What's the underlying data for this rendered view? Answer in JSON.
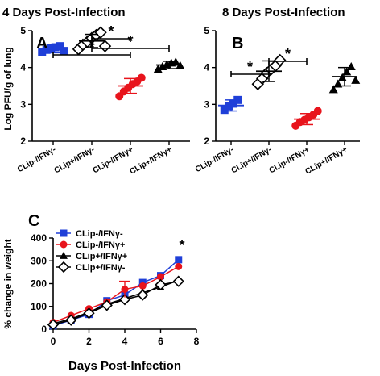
{
  "chart_data": [
    {
      "panel": "A",
      "type": "scatter",
      "title": "4 Days Post-Infection",
      "ylabel": "Log PFU/g of lung",
      "ylim": [
        2,
        5
      ],
      "yticks": [
        "2",
        "3",
        "4",
        "5"
      ],
      "categories": [
        "CLip-/IFNγ-",
        "CLip+/IFNγ-",
        "CLip-/IFNγ+",
        "CLip+/IFNγ+"
      ],
      "series": [
        {
          "category": "CLip-/IFNγ-",
          "marker": "square",
          "color": "#1f3fd8",
          "mean": 4.5,
          "sd": 0.1,
          "points": [
            4.42,
            4.48,
            4.52,
            4.55,
            4.58,
            4.45
          ]
        },
        {
          "category": "CLip+/IFNγ-",
          "marker": "diamond-open",
          "color": "#000000",
          "mean": 4.72,
          "sd": 0.18,
          "points": [
            4.5,
            4.62,
            4.7,
            4.8,
            4.88,
            4.95,
            4.58
          ]
        },
        {
          "category": "CLip-/IFNγ+",
          "marker": "circle",
          "color": "#e8141c",
          "mean": 3.5,
          "sd": 0.2,
          "points": [
            3.22,
            3.35,
            3.45,
            3.55,
            3.62,
            3.72
          ]
        },
        {
          "category": "CLip+/IFNγ+",
          "marker": "triangle",
          "color": "#000000",
          "mean": 4.07,
          "sd": 0.1,
          "points": [
            3.95,
            4.02,
            4.08,
            4.12,
            4.15,
            4.05
          ]
        }
      ],
      "significance": [
        "*",
        "*",
        "*"
      ]
    },
    {
      "panel": "B",
      "type": "scatter",
      "title": "8 Days Post-Infection",
      "ylim": [
        2,
        5
      ],
      "yticks": [
        "2",
        "3",
        "4",
        "5"
      ],
      "categories": [
        "CLip-/IFNγ-",
        "CLip+/IFNγ-",
        "CLip-/IFNγ+",
        "CLip+/IFNγ+"
      ],
      "series": [
        {
          "category": "CLip-/IFNγ-",
          "marker": "square",
          "color": "#1f3fd8",
          "mean": 2.97,
          "sd": 0.15,
          "points": [
            2.85,
            2.95,
            3.02,
            3.12
          ]
        },
        {
          "category": "CLip+/IFNγ-",
          "marker": "diamond-open",
          "color": "#000000",
          "mean": 3.9,
          "sd": 0.28,
          "points": [
            3.55,
            3.7,
            3.85,
            3.95,
            4.05,
            4.2
          ]
        },
        {
          "category": "CLip-/IFNγ+",
          "marker": "circle",
          "color": "#e8141c",
          "mean": 2.6,
          "sd": 0.15,
          "points": [
            2.42,
            2.52,
            2.58,
            2.65,
            2.72,
            2.82
          ]
        },
        {
          "category": "CLip+/IFNγ+",
          "marker": "triangle",
          "color": "#000000",
          "mean": 3.75,
          "sd": 0.25,
          "points": [
            3.4,
            3.55,
            3.72,
            3.88,
            4.02,
            3.65
          ]
        }
      ],
      "significance": [
        "*",
        "*"
      ]
    },
    {
      "panel": "C",
      "type": "line",
      "xlabel": "Days Post-Infection",
      "ylabel": "% change in weight",
      "xlim": [
        0,
        8
      ],
      "ylim": [
        0,
        400
      ],
      "xticks": [
        "0",
        "2",
        "4",
        "6",
        "8"
      ],
      "yticks": [
        "0",
        "100",
        "200",
        "300",
        "400"
      ],
      "x": [
        0,
        1,
        2,
        3,
        4,
        5,
        6,
        7
      ],
      "series": [
        {
          "name": "CLip-/IFNγ-",
          "marker": "square",
          "color": "#1f3fd8",
          "values": [
            15,
            40,
            65,
            125,
            150,
            205,
            235,
            305
          ]
        },
        {
          "name": "CLip-/IFNγ+",
          "marker": "circle",
          "color": "#e8141c",
          "values": [
            30,
            60,
            90,
            120,
            175,
            190,
            230,
            275
          ]
        },
        {
          "name": "CLip+/IFNγ+",
          "marker": "triangle",
          "color": "#000000",
          "values": [
            25,
            45,
            75,
            110,
            135,
            160,
            185,
            215
          ]
        },
        {
          "name": "CLip+/IFNγ-",
          "marker": "diamond-open",
          "color": "#000000",
          "values": [
            20,
            40,
            70,
            105,
            130,
            150,
            195,
            210
          ]
        }
      ],
      "significance": "*"
    }
  ],
  "labels": {
    "panel_a": "A",
    "panel_b": "B",
    "panel_c": "C"
  }
}
